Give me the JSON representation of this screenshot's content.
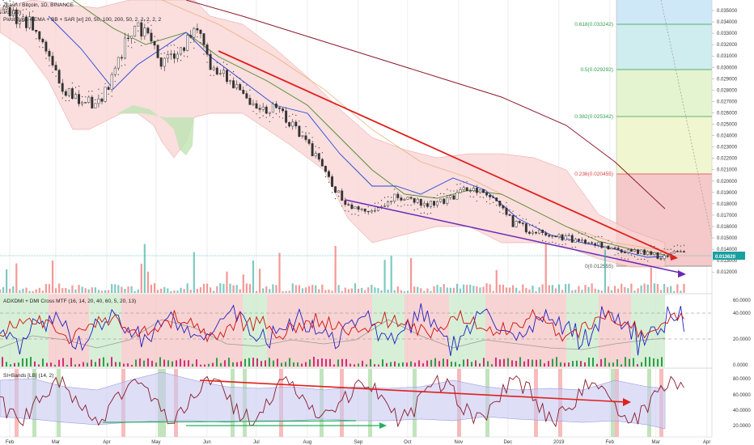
{
  "header": {
    "symbol_line": "Zcash / Bitcoin, 1D, BINANCE",
    "vol_line": "Vol (20)",
    "indicator_line": "Pivot Boss 4 EMA + BB + SAR [xr] 20, 50, 100, 200, 50, 2, 2, 2, 2, 2"
  },
  "sub_panels": {
    "adx_title": "ADXDMI + DMI Cross MTF (16, 14, 20, 40, 60, 5, 20, 13)",
    "rsi_title": "SI+Bands [LB] (14, 2)"
  },
  "current_price": "0.013620",
  "fib_levels": [
    {
      "label": "0.618(0.033242)",
      "price": 0.033242,
      "color": "#2e9e4a"
    },
    {
      "label": "0.5(0.029292)",
      "price": 0.029292,
      "color": "#2e9e4a"
    },
    {
      "label": "0.382(0.025342)",
      "price": 0.025342,
      "color": "#2e9e4a"
    },
    {
      "label": "0.236(0.020455)",
      "price": 0.020455,
      "color": "#e04040"
    },
    {
      "label": "0(0.012555)",
      "price": 0.012555,
      "color": "#555555"
    }
  ],
  "months": [
    "Feb",
    "Mar",
    "Apr",
    "May",
    "Jun",
    "Jul",
    "Aug",
    "Sep",
    "Oct",
    "Nov",
    "Dec",
    "2019",
    "Feb",
    "Mar",
    "Apr"
  ],
  "price_axis": [
    "0.035000",
    "0.034000",
    "0.033000",
    "0.032000",
    "0.031000",
    "0.030000",
    "0.029000",
    "0.028000",
    "0.027000",
    "0.026000",
    "0.025000",
    "0.024000",
    "0.023000",
    "0.022000",
    "0.021000",
    "0.020000",
    "0.019000",
    "0.018000",
    "0.017000",
    "0.016000",
    "0.015000",
    "0.014000",
    "0.013000",
    "0.012000"
  ],
  "adx_axis": [
    "60.0000",
    "40.0000",
    "20.0000",
    "0.0000"
  ],
  "rsi_axis": [
    "80.0000",
    "60.0000",
    "40.0000",
    "20.0000"
  ],
  "chart_data": {
    "type": "line",
    "title": "Zcash / Bitcoin, 1D, BINANCE",
    "x_unit": "date",
    "x_start": "2018-02-01",
    "x_end": "2019-04-10",
    "y_scale": "linear",
    "ylim": [
      0.0118,
      0.0355
    ],
    "grid": true,
    "series": [
      {
        "x": [
          "2018-02-01",
          "2018-02-10",
          "2018-02-20",
          "2018-03-01",
          "2018-03-10",
          "2018-03-20",
          "2018-04-01",
          "2018-04-10",
          "2018-04-20",
          "2018-05-01",
          "2018-05-10",
          "2018-05-20",
          "2018-06-01",
          "2018-06-10",
          "2018-06-20",
          "2018-07-01",
          "2018-07-10",
          "2018-07-20",
          "2018-08-01",
          "2018-08-10",
          "2018-08-20",
          "2018-09-01",
          "2018-09-10",
          "2018-09-20",
          "2018-10-01",
          "2018-10-10",
          "2018-10-20",
          "2018-11-01",
          "2018-11-10",
          "2018-11-20",
          "2018-12-01",
          "2018-12-10",
          "2018-12-20",
          "2019-01-01",
          "2019-01-10",
          "2019-01-20",
          "2019-02-01",
          "2019-02-10",
          "2019-02-20",
          "2019-03-01",
          "2019-03-10",
          "2019-03-20"
        ],
        "values": [
          0.0348,
          0.0345,
          0.034,
          0.0315,
          0.0282,
          0.0272,
          0.0268,
          0.029,
          0.033,
          0.0335,
          0.0305,
          0.0312,
          0.0335,
          0.03,
          0.029,
          0.027,
          0.0265,
          0.0262,
          0.0245,
          0.0225,
          0.02,
          0.0178,
          0.0172,
          0.0178,
          0.0188,
          0.0182,
          0.018,
          0.0183,
          0.0195,
          0.019,
          0.018,
          0.0163,
          0.0157,
          0.0153,
          0.015,
          0.0148,
          0.0143,
          0.014,
          0.0139,
          0.0136,
          0.0134,
          0.0137
        ]
      }
    ],
    "trendlines": [
      {
        "name": "resistance",
        "color": "#e0201b",
        "from": {
          "x": "2018-06-05",
          "y": 0.031
        },
        "to": {
          "x": "2019-03-25",
          "y": 0.0136
        }
      },
      {
        "name": "support",
        "color": "#6a28b8",
        "from": {
          "x": "2018-08-28",
          "y": 0.018
        },
        "to": {
          "x": "2019-03-28",
          "y": 0.0118
        }
      }
    ]
  },
  "colors": {
    "bull": "#26a69a",
    "bear": "#ef5350",
    "bb_fill": "#f8c6c6",
    "bb_green": "#b9e5b0",
    "fib_blue": "#cfe8f7",
    "fib_green": "#dff3c8",
    "fib_yellowgreen": "#eef6cc",
    "fib_red": "#f7d0d0",
    "price_tag": "#1aa0a0",
    "grid": "#e8e8e8"
  }
}
